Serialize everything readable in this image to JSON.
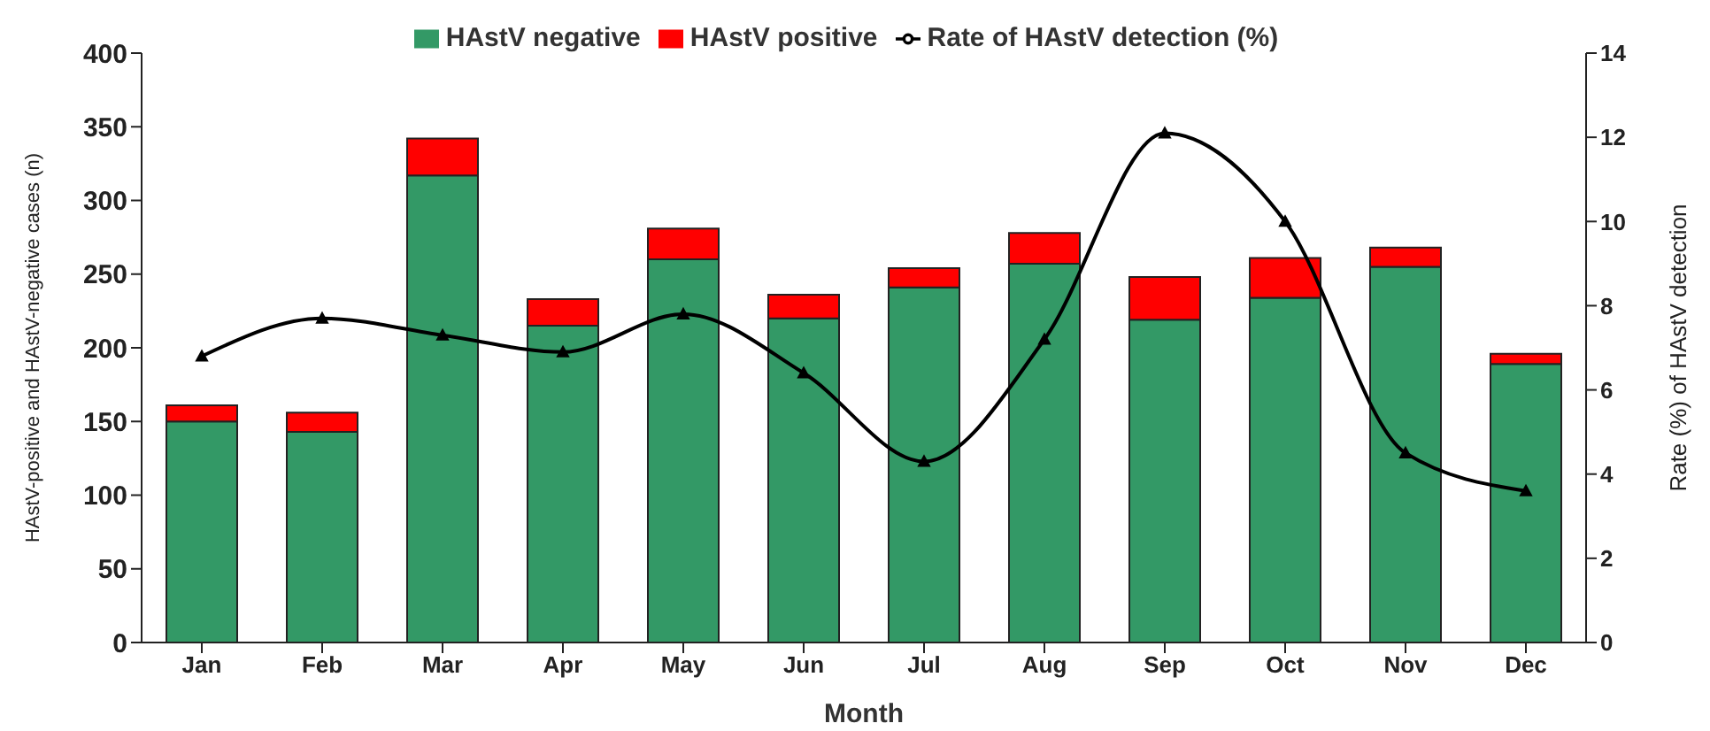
{
  "chart_data": {
    "type": "bar",
    "stacked": true,
    "xlabel": "Month",
    "ylabel": "HAstV-positive and HAstV-negative cases (n)",
    "y2label": "Rate (%) of HAstV detection",
    "categories": [
      "Jan",
      "Feb",
      "Mar",
      "Apr",
      "May",
      "Jun",
      "Jul",
      "Aug",
      "Sep",
      "Oct",
      "Nov",
      "Dec"
    ],
    "series": [
      {
        "name": "HAstV negative",
        "color": "#339966",
        "values": [
          150,
          143,
          317,
          215,
          260,
          220,
          241,
          257,
          219,
          234,
          255,
          189
        ]
      },
      {
        "name": "HAstV positive",
        "color": "#ff0000",
        "values": [
          11,
          13,
          25,
          18,
          21,
          16,
          13,
          21,
          29,
          27,
          13,
          7
        ]
      },
      {
        "name": "Rate of HAstV detection (%)",
        "type": "line",
        "axis": "y2",
        "color": "#000000",
        "marker": "triangle",
        "values": [
          6.8,
          7.7,
          7.3,
          6.9,
          7.8,
          6.4,
          4.3,
          7.2,
          12.1,
          10.0,
          4.5,
          3.6
        ]
      }
    ],
    "ylim": [
      0,
      400
    ],
    "yticks": [
      0,
      50,
      100,
      150,
      200,
      250,
      300,
      350,
      400
    ],
    "y2lim": [
      0,
      14
    ],
    "y2ticks": [
      0,
      2,
      4,
      6,
      8,
      10,
      12,
      14
    ],
    "grid": false,
    "legend": "top"
  }
}
